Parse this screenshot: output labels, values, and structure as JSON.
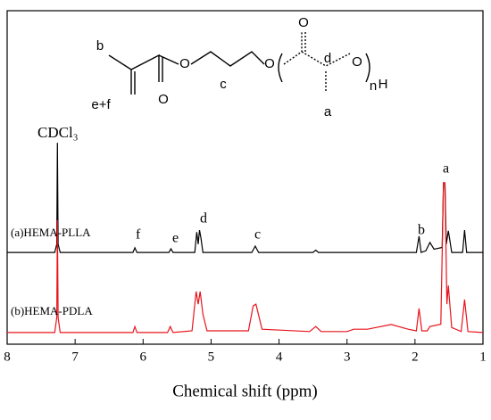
{
  "chart_data": {
    "type": "line",
    "x_label": "Chemical shift (ppm)",
    "xlim": [
      8,
      1
    ],
    "xticks": [
      8,
      7,
      6,
      5,
      4,
      3,
      2,
      1
    ],
    "ylim": [
      0,
      100
    ],
    "annotations": [
      "CDCl₃",
      "f",
      "e",
      "d",
      "c",
      "b",
      "a"
    ],
    "structure_labels": [
      "b",
      "e+f",
      "O",
      "O",
      "c",
      "O",
      "O",
      "d",
      "a",
      "O",
      "n",
      "H"
    ],
    "series": [
      {
        "name": "(a)HEMA-PLLA",
        "color": "#000000",
        "x": [
          8.0,
          7.3,
          7.27,
          7.26,
          7.25,
          7.22,
          6.15,
          6.12,
          6.09,
          5.62,
          5.59,
          5.56,
          5.24,
          5.21,
          5.19,
          5.17,
          5.15,
          5.12,
          4.4,
          4.35,
          4.3,
          3.5,
          3.46,
          3.42,
          1.98,
          1.94,
          1.91,
          1.84,
          1.78,
          1.72,
          1.6,
          1.58,
          1.56,
          1.54,
          1.51,
          1.49,
          1.46,
          1.3,
          1.27,
          1.24,
          1.0
        ],
        "values": [
          27.5,
          27.5,
          30,
          60.4,
          30,
          27.5,
          27.5,
          28.9,
          27.5,
          27.5,
          28.6,
          27.5,
          27.5,
          33.6,
          30,
          34.2,
          32,
          27.5,
          27.5,
          29.4,
          27.5,
          27.5,
          28.2,
          27.5,
          27.5,
          32.4,
          27.5,
          28,
          30.5,
          28.5,
          29,
          48.4,
          48.4,
          30,
          34,
          31.5,
          27.5,
          27.5,
          34.2,
          27.5,
          27.5
        ]
      },
      {
        "name": "(b)HEMA-PDLA",
        "color": "#e8141c",
        "x": [
          8.0,
          7.3,
          7.27,
          7.26,
          7.25,
          7.22,
          6.15,
          6.12,
          6.09,
          5.64,
          5.6,
          5.56,
          5.28,
          5.22,
          5.19,
          5.16,
          5.12,
          5.06,
          4.45,
          4.38,
          4.34,
          4.25,
          3.55,
          3.46,
          3.38,
          3.0,
          2.9,
          2.7,
          2.35,
          2.1,
          1.98,
          1.94,
          1.9,
          1.82,
          1.78,
          1.62,
          1.58,
          1.56,
          1.53,
          1.51,
          1.46,
          1.32,
          1.27,
          1.22,
          1.0
        ],
        "values": [
          3.5,
          3.5,
          8,
          37.2,
          8,
          3.5,
          3.5,
          5.3,
          3.5,
          3.5,
          5.3,
          3.5,
          4,
          15.8,
          12,
          15.8,
          9,
          4,
          4,
          11.5,
          12,
          4.5,
          3.8,
          5.3,
          3.8,
          3.8,
          4.5,
          4.5,
          5.9,
          4.5,
          4,
          10.7,
          4,
          4,
          5.3,
          6,
          48.4,
          48.4,
          12,
          17.6,
          5,
          3.8,
          13.4,
          3.8,
          3.5
        ]
      }
    ]
  }
}
